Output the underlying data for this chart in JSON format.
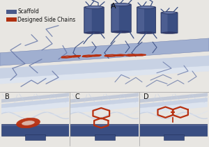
{
  "bg_color": "#e8e6e2",
  "panel_A_label": "A",
  "panel_B_label": "B",
  "panel_C_label": "C",
  "panel_D_label": "D",
  "legend_scaffold_color": "#4a5a8a",
  "legend_side_chains_color": "#b03010",
  "legend_scaffold_label": "Scaffold",
  "legend_side_chains_label": "Designed Side Chains",
  "scaffold_dark": "#3a4e82",
  "scaffold_mid": "#6878a8",
  "scaffold_light": "#a0afd0",
  "scaffold_lighter": "#c8d2e4",
  "scaffold_vlight": "#dde4ef",
  "side_chain_color": "#b83010",
  "label_fontsize": 7,
  "label_color": "#111111",
  "border_color": "#aaaaaa"
}
